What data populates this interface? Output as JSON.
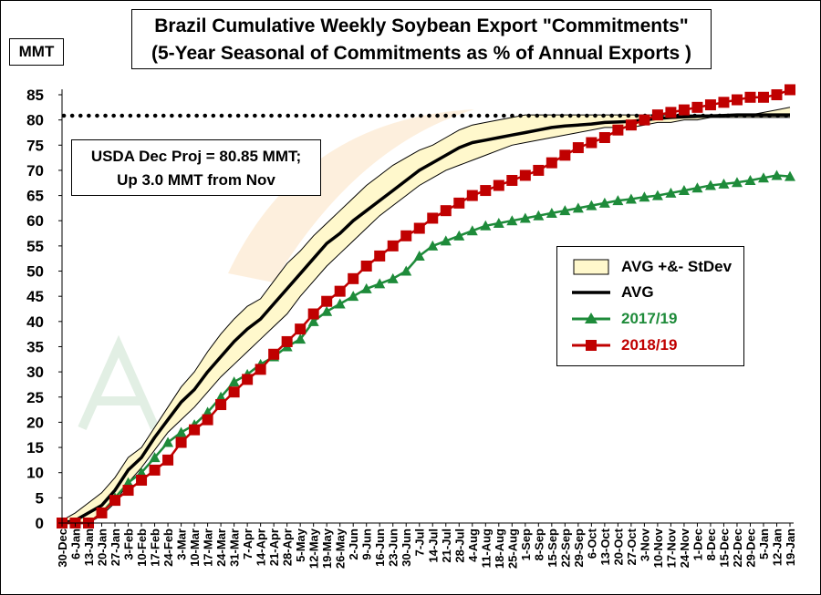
{
  "chart_data": {
    "type": "line",
    "title": "Brazil Cumulative Weekly Soybean Export \"Commitments\"",
    "subtitle": "(5-Year Seasonal of Commitments as % of Annual Exports )",
    "ylabel": "MMT",
    "ylim": [
      0,
      85
    ],
    "yticks": [
      0,
      5,
      10,
      15,
      20,
      25,
      30,
      35,
      40,
      45,
      50,
      55,
      60,
      65,
      70,
      75,
      80,
      85
    ],
    "categories": [
      "30-Dec",
      "6-Jan",
      "13-Jan",
      "20-Jan",
      "27-Jan",
      "3-Feb",
      "10-Feb",
      "17-Feb",
      "24-Feb",
      "3-Mar",
      "10-Mar",
      "17-Mar",
      "24-Mar",
      "31-Mar",
      "7-Apr",
      "14-Apr",
      "21-Apr",
      "28-Apr",
      "5-May",
      "12-May",
      "19-May",
      "26-May",
      "2-Jun",
      "9-Jun",
      "16-Jun",
      "23-Jun",
      "30-Jun",
      "7-Jul",
      "14-Jul",
      "21-Jul",
      "28-Jul",
      "4-Aug",
      "11-Aug",
      "18-Aug",
      "25-Aug",
      "1-Sep",
      "8-Sep",
      "15-Sep",
      "22-Sep",
      "29-Sep",
      "6-Oct",
      "13-Oct",
      "20-Oct",
      "27-Oct",
      "3-Nov",
      "10-Nov",
      "17-Nov",
      "24-Nov",
      "1-Dec",
      "8-Dec",
      "15-Dec",
      "22-Dec",
      "29-Dec",
      "5-Jan",
      "12-Jan",
      "19-Jan"
    ],
    "reference_line": {
      "value": 80.85,
      "style": "dotted"
    },
    "annotation": {
      "line1": "USDA Dec Proj = 80.85 MMT;",
      "line2": "Up 3.0 MMT from Nov"
    },
    "legend": {
      "placement": "center-right",
      "entries": [
        "AVG +&- StDev",
        "AVG",
        "2017/19",
        "2018/19"
      ]
    },
    "band": {
      "name": "AVG +&- StDev",
      "color": "#FFF8CC",
      "upper": [
        0.5,
        2,
        4,
        6,
        9,
        13,
        15,
        19,
        23,
        27,
        30,
        34,
        37.5,
        40.5,
        43,
        44.5,
        48,
        51.5,
        54,
        57,
        59.5,
        62,
        64.5,
        67,
        69,
        71,
        72.5,
        74,
        75,
        76.5,
        78,
        79,
        79.5,
        80,
        80.5,
        81,
        81,
        81,
        81,
        81,
        81,
        81,
        81,
        81,
        81,
        81,
        81,
        81,
        81,
        81,
        81,
        81,
        81,
        81.5,
        82,
        82.5
      ],
      "lower": [
        0,
        0,
        0,
        1.5,
        4,
        8,
        11,
        14.5,
        18,
        20.5,
        23,
        26,
        29,
        31.5,
        34,
        36.5,
        39,
        41.5,
        45,
        48,
        51,
        53.5,
        56,
        58.5,
        61,
        63,
        65,
        67,
        68.5,
        70,
        71,
        72,
        73,
        74,
        75,
        75.5,
        76,
        76.5,
        77,
        77.5,
        78,
        78.5,
        78.5,
        78.5,
        79,
        79.5,
        79.5,
        80,
        80,
        80.5,
        80.5,
        80.5,
        80.5,
        80.5,
        80.5,
        80.5
      ]
    },
    "series": [
      {
        "name": "AVG",
        "color": "#000000",
        "marker": "none",
        "values": [
          0,
          0.5,
          2,
          3.5,
          6.5,
          10.5,
          13,
          17,
          20.5,
          24,
          26.5,
          30,
          33,
          36,
          38.5,
          40.5,
          43.5,
          46.5,
          49.5,
          52.5,
          55.5,
          57.5,
          60,
          62,
          64,
          66,
          68,
          70,
          71.5,
          73,
          74.5,
          75.5,
          76,
          76.5,
          77,
          77.5,
          78,
          78.5,
          78.8,
          79,
          79.2,
          79.5,
          79.6,
          79.7,
          80,
          80.3,
          80.5,
          80.6,
          80.7,
          80.8,
          80.9,
          81,
          81,
          81,
          81,
          81
        ]
      },
      {
        "name": "2017/19",
        "color": "#1E8B3A",
        "marker": "triangle",
        "values": [
          0,
          0,
          0,
          2,
          5,
          8,
          10,
          13,
          16,
          18,
          19.5,
          22,
          25,
          28,
          29.5,
          31.5,
          33,
          35,
          36.5,
          40,
          42,
          43.5,
          45,
          46.5,
          47.5,
          48.5,
          50,
          53,
          55,
          56,
          57,
          58,
          59,
          59.5,
          60,
          60.5,
          61,
          61.5,
          62,
          62.5,
          63,
          63.5,
          64,
          64.3,
          64.7,
          65,
          65.5,
          66,
          66.5,
          67,
          67.3,
          67.6,
          68,
          68.5,
          69,
          68.8
        ]
      },
      {
        "name": "2018/19",
        "color": "#C00000",
        "marker": "square",
        "values": [
          0,
          0,
          0,
          2,
          4.5,
          6.5,
          8.5,
          10.5,
          12.5,
          16,
          18.5,
          20.5,
          23.5,
          26,
          28.5,
          30.5,
          33.5,
          36,
          38.5,
          41.5,
          44,
          46,
          48.5,
          51,
          53,
          55,
          57,
          58.5,
          60.5,
          62,
          63.5,
          65,
          66,
          67,
          68,
          69,
          70,
          71.5,
          73,
          74.5,
          75.5,
          76.5,
          78,
          79,
          80,
          81,
          81.5,
          82,
          82.5,
          83,
          83.5,
          84,
          84.5,
          84.5,
          85,
          86
        ]
      }
    ]
  }
}
